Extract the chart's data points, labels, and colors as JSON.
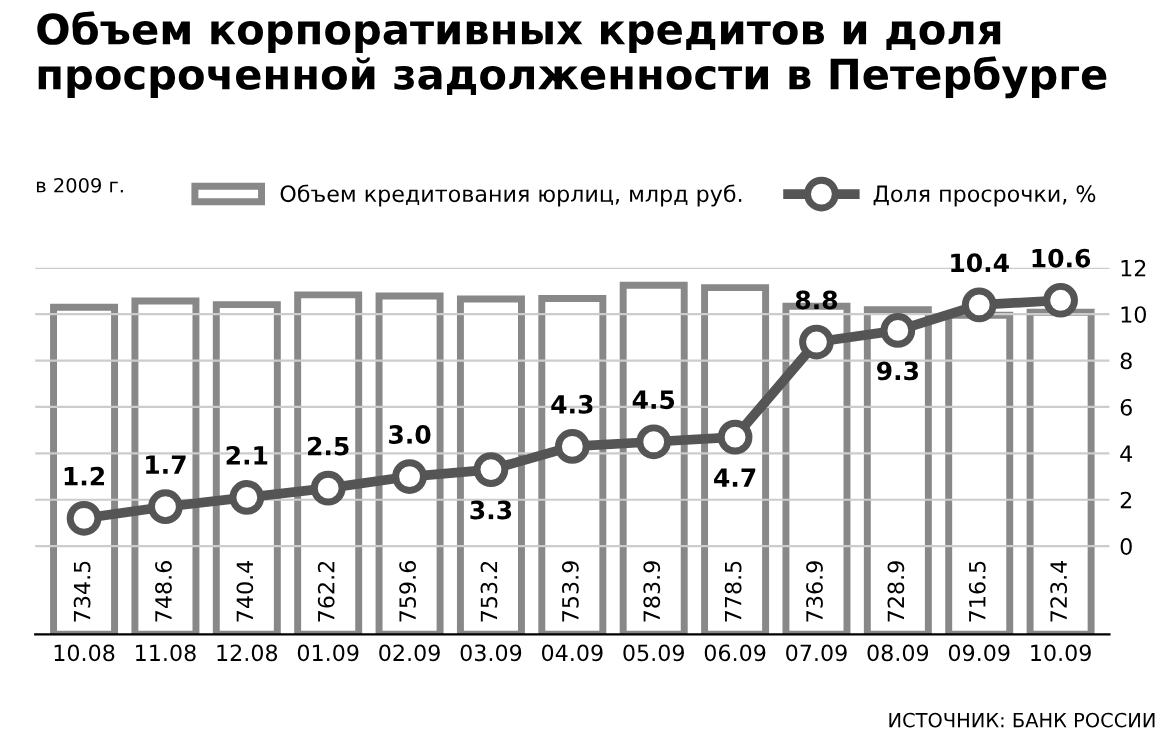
{
  "chart_data": {
    "type": "bar",
    "title": "Объем корпоративных кредитов и доля\nпросроченной задолженности в Петербурге",
    "categories": [
      "10.08",
      "11.08",
      "12.08",
      "01.09",
      "02.09",
      "03.09",
      "04.09",
      "05.09",
      "06.09",
      "07.09",
      "08.09",
      "09.09",
      "10.09"
    ],
    "series": [
      {
        "name": "Объем кредитования юрлиц, млрд руб.",
        "color": "#ffffff",
        "values": [
          734.5,
          748.6,
          740.4,
          762.2,
          759.6,
          753.2,
          753.9,
          783.9,
          778.5,
          736.9,
          728.9,
          716.5,
          723.4
        ]
      },
      {
        "name": "Доля просрочки, %",
        "type": "line",
        "axis": "y2",
        "color": "#555555",
        "values": [
          1.2,
          1.7,
          2.1,
          2.5,
          3.0,
          3.3,
          4.3,
          4.5,
          4.7,
          8.8,
          9.3,
          10.4,
          10.6
        ],
        "value_labels": [
          "1.2",
          "1.7",
          "2.1",
          "2.5",
          "3.0",
          "3.3",
          "4.3",
          "4.5",
          "4.7",
          "8.8",
          "9.3",
          "10.4",
          "10.6"
        ]
      }
    ],
    "y2lim": [
      -3.8,
      12
    ],
    "y2ticks": [
      0,
      2,
      4,
      6,
      8,
      10,
      12
    ],
    "data_labels": true,
    "marker": "circle",
    "grid": "y",
    "legend": "top",
    "annotations": [
      "в 2009 г.",
      "ИСТОЧНИК: БАНК РОССИИ"
    ]
  }
}
